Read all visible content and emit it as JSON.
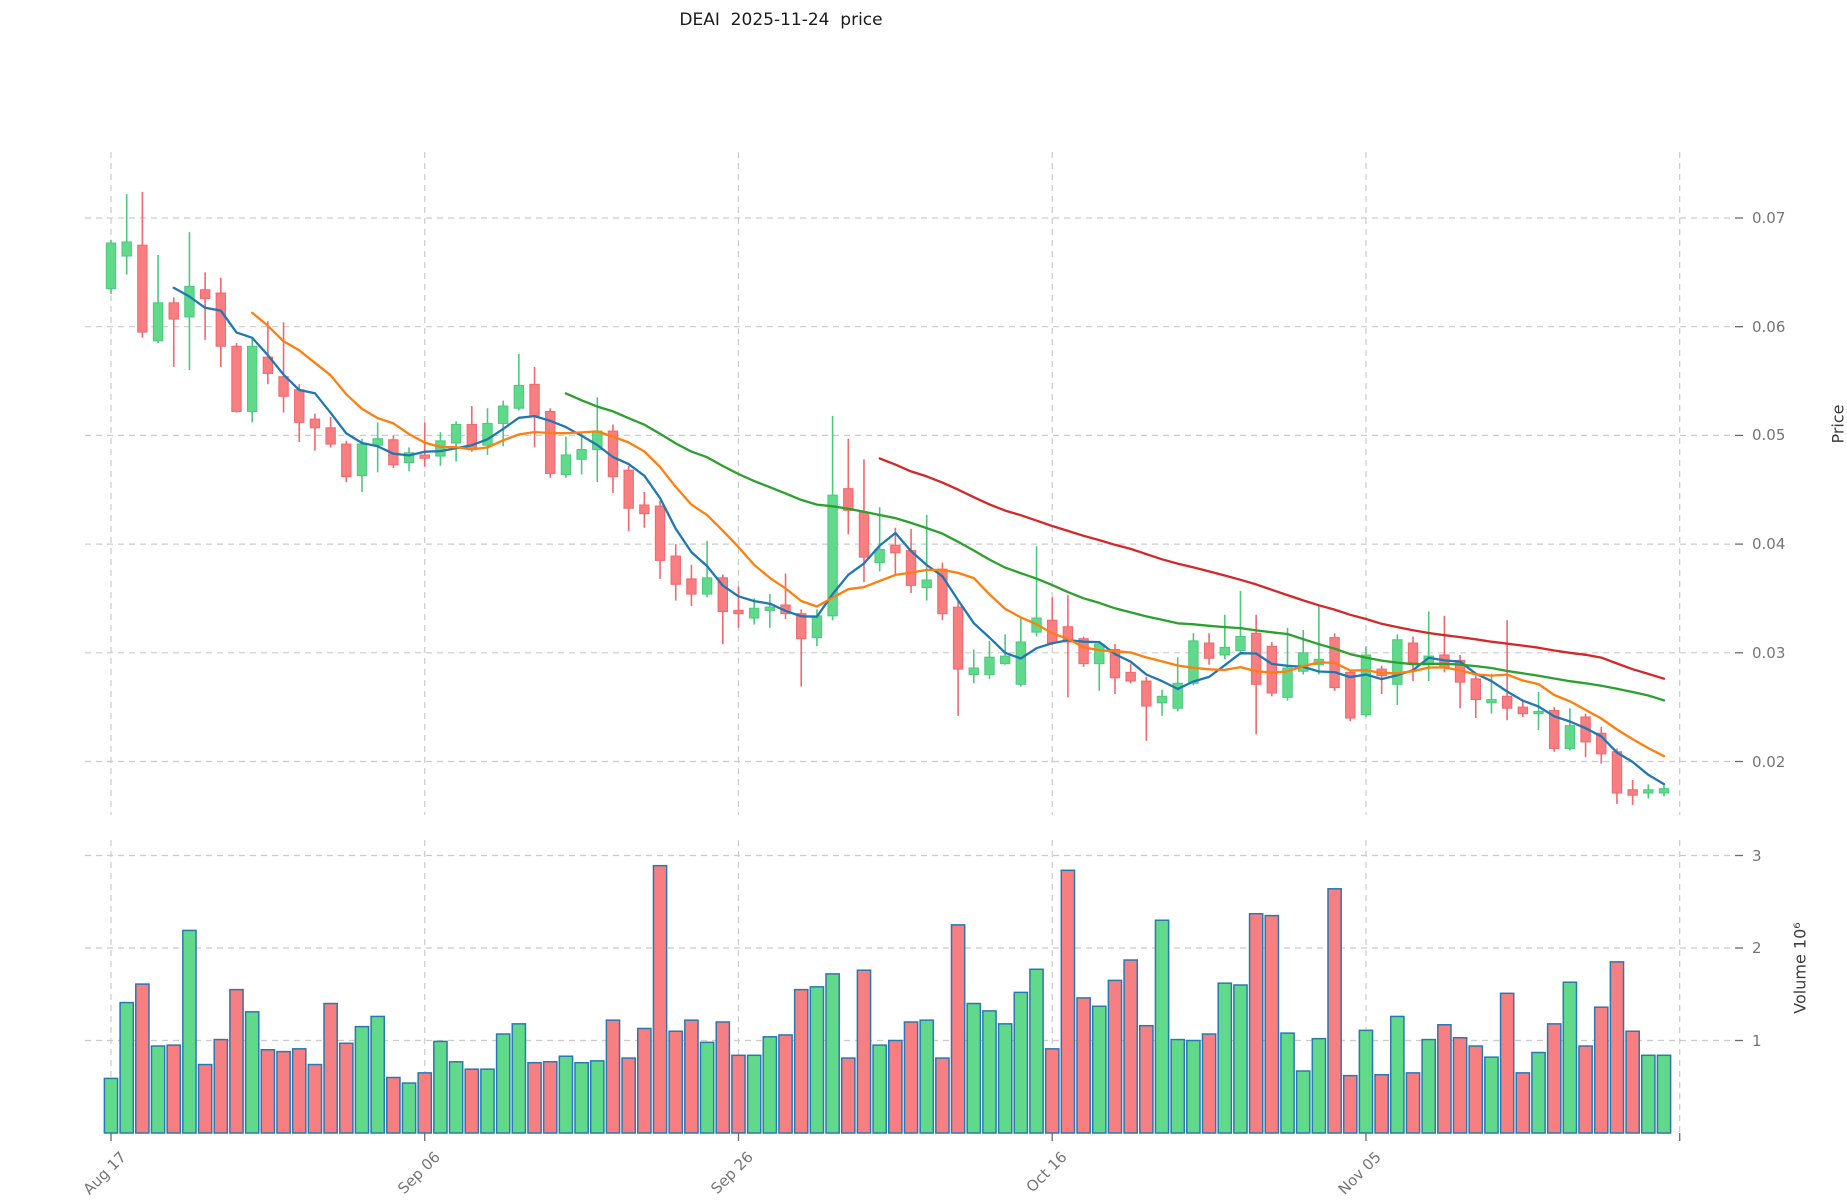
{
  "title": "DEAI  2025-11-24  price",
  "price_axis": {
    "label": "Price",
    "ticks": [
      {
        "value": 0.07,
        "label": "0.07"
      },
      {
        "value": 0.06,
        "label": "0.06"
      },
      {
        "value": 0.05,
        "label": "0.05"
      },
      {
        "value": 0.04,
        "label": "0.04"
      },
      {
        "value": 0.03,
        "label": "0.03"
      },
      {
        "value": 0.02,
        "label": "0.02"
      }
    ]
  },
  "volume_axis": {
    "label": "Volume 10⁶",
    "ticks": [
      {
        "value": 3,
        "label": "3"
      },
      {
        "value": 2,
        "label": "2"
      },
      {
        "value": 1,
        "label": "1"
      }
    ]
  },
  "x_axis": {
    "ticks": [
      {
        "index": 0,
        "label": "Aug 17"
      },
      {
        "index": 20,
        "label": "Sep 06"
      },
      {
        "index": 40,
        "label": "Sep 26"
      },
      {
        "index": 60,
        "label": "Oct 16"
      },
      {
        "index": 80,
        "label": "Nov 05"
      },
      {
        "index": 100,
        "label": ""
      }
    ]
  },
  "colors": {
    "up_fill": "#61d98a",
    "up_edge": "#4cc97c",
    "up_wick": "#4cc97c",
    "down_fill": "#f77e81",
    "down_edge": "#f1686d",
    "down_wick": "#f1686d",
    "volume_edge": "#2a78b0",
    "grid": "#cbcbcb",
    "tick_mark": "#6b6b6b",
    "ma_colors": [
      "#1f77b4",
      "#ff7f0e",
      "#2ca02c",
      "#d62728"
    ]
  },
  "chart_data": {
    "type": "candlestick+volume",
    "symbol": "DEAI",
    "as_of_date": "2025-11-24",
    "frequency": "daily",
    "num_candles": 100,
    "price_ylim": [
      0.0151,
      0.0761
    ],
    "volume_ylim_millions": [
      0,
      3.17
    ],
    "grid": true,
    "moving_average_windows": [
      5,
      10,
      30,
      50
    ],
    "ohlc": [
      [
        0.0635,
        0.068,
        0.063,
        0.0677
      ],
      [
        0.0665,
        0.0722,
        0.0648,
        0.0678
      ],
      [
        0.0675,
        0.0724,
        0.059,
        0.0595
      ],
      [
        0.0587,
        0.0666,
        0.0585,
        0.0622
      ],
      [
        0.0622,
        0.0627,
        0.0563,
        0.0607
      ],
      [
        0.0609,
        0.0687,
        0.056,
        0.0637
      ],
      [
        0.0634,
        0.065,
        0.0588,
        0.0626
      ],
      [
        0.0631,
        0.0645,
        0.0563,
        0.0582
      ],
      [
        0.0582,
        0.0585,
        0.0521,
        0.0522
      ],
      [
        0.0522,
        0.059,
        0.0512,
        0.0582
      ],
      [
        0.0572,
        0.0605,
        0.0547,
        0.0557
      ],
      [
        0.0554,
        0.0604,
        0.0521,
        0.0536
      ],
      [
        0.0542,
        0.0547,
        0.0494,
        0.0512
      ],
      [
        0.0515,
        0.052,
        0.0486,
        0.0507
      ],
      [
        0.0507,
        0.0517,
        0.0489,
        0.0492
      ],
      [
        0.0492,
        0.0495,
        0.0457,
        0.0462
      ],
      [
        0.0463,
        0.0497,
        0.0448,
        0.0492
      ],
      [
        0.0491,
        0.0512,
        0.0466,
        0.0497
      ],
      [
        0.0496,
        0.05,
        0.047,
        0.0473
      ],
      [
        0.0475,
        0.0489,
        0.0467,
        0.0484
      ],
      [
        0.0482,
        0.0512,
        0.0471,
        0.0479
      ],
      [
        0.0481,
        0.0503,
        0.0472,
        0.0495
      ],
      [
        0.0493,
        0.0513,
        0.0476,
        0.051
      ],
      [
        0.051,
        0.0527,
        0.0485,
        0.0487
      ],
      [
        0.0491,
        0.0525,
        0.0482,
        0.0511
      ],
      [
        0.0511,
        0.0532,
        0.049,
        0.0527
      ],
      [
        0.0525,
        0.0575,
        0.0523,
        0.0546
      ],
      [
        0.0547,
        0.0563,
        0.0489,
        0.0518
      ],
      [
        0.0522,
        0.0525,
        0.0461,
        0.0465
      ],
      [
        0.0464,
        0.0499,
        0.0461,
        0.0482
      ],
      [
        0.0478,
        0.0502,
        0.0464,
        0.0487
      ],
      [
        0.0487,
        0.0535,
        0.0457,
        0.0504
      ],
      [
        0.0504,
        0.051,
        0.0447,
        0.0462
      ],
      [
        0.0468,
        0.0472,
        0.0412,
        0.0433
      ],
      [
        0.0436,
        0.0448,
        0.0415,
        0.0428
      ],
      [
        0.0435,
        0.044,
        0.0368,
        0.0385
      ],
      [
        0.0389,
        0.04,
        0.0348,
        0.0363
      ],
      [
        0.0368,
        0.0381,
        0.0343,
        0.0354
      ],
      [
        0.0354,
        0.0403,
        0.0351,
        0.0369
      ],
      [
        0.0369,
        0.0372,
        0.0308,
        0.0338
      ],
      [
        0.0339,
        0.0361,
        0.0323,
        0.0336
      ],
      [
        0.0332,
        0.035,
        0.0326,
        0.0341
      ],
      [
        0.0339,
        0.0354,
        0.0323,
        0.0342
      ],
      [
        0.0344,
        0.0373,
        0.0331,
        0.0336
      ],
      [
        0.0336,
        0.034,
        0.0269,
        0.0313
      ],
      [
        0.0314,
        0.034,
        0.0306,
        0.0334
      ],
      [
        0.0334,
        0.0518,
        0.033,
        0.0445
      ],
      [
        0.0451,
        0.0497,
        0.0409,
        0.0431
      ],
      [
        0.0429,
        0.0478,
        0.0365,
        0.0388
      ],
      [
        0.0383,
        0.0434,
        0.0375,
        0.0395
      ],
      [
        0.0399,
        0.0415,
        0.0372,
        0.0392
      ],
      [
        0.0394,
        0.0414,
        0.0355,
        0.0362
      ],
      [
        0.036,
        0.0427,
        0.0348,
        0.0367
      ],
      [
        0.0377,
        0.0383,
        0.033,
        0.0336
      ],
      [
        0.0342,
        0.0348,
        0.0242,
        0.0285
      ],
      [
        0.028,
        0.0303,
        0.0272,
        0.0286
      ],
      [
        0.028,
        0.0311,
        0.0276,
        0.0296
      ],
      [
        0.029,
        0.0317,
        0.0289,
        0.0297
      ],
      [
        0.0271,
        0.0333,
        0.0269,
        0.031
      ],
      [
        0.0319,
        0.0398,
        0.0315,
        0.0332
      ],
      [
        0.033,
        0.0351,
        0.0307,
        0.0309
      ],
      [
        0.0324,
        0.0353,
        0.0259,
        0.031
      ],
      [
        0.0313,
        0.0315,
        0.0287,
        0.029
      ],
      [
        0.029,
        0.0311,
        0.0265,
        0.0308
      ],
      [
        0.0303,
        0.0308,
        0.0262,
        0.0277
      ],
      [
        0.0282,
        0.029,
        0.0272,
        0.0274
      ],
      [
        0.0274,
        0.0278,
        0.0219,
        0.0251
      ],
      [
        0.0254,
        0.0266,
        0.0242,
        0.026
      ],
      [
        0.0249,
        0.0296,
        0.0246,
        0.0272
      ],
      [
        0.0272,
        0.0318,
        0.027,
        0.0311
      ],
      [
        0.0309,
        0.0318,
        0.0289,
        0.0295
      ],
      [
        0.0298,
        0.0335,
        0.0294,
        0.0305
      ],
      [
        0.0302,
        0.0357,
        0.0298,
        0.0315
      ],
      [
        0.0318,
        0.0335,
        0.0225,
        0.0271
      ],
      [
        0.0306,
        0.031,
        0.026,
        0.0263
      ],
      [
        0.0259,
        0.0323,
        0.0256,
        0.0286
      ],
      [
        0.0283,
        0.0321,
        0.028,
        0.03
      ],
      [
        0.0289,
        0.0343,
        0.028,
        0.0294
      ],
      [
        0.0314,
        0.0318,
        0.0265,
        0.0268
      ],
      [
        0.0282,
        0.0284,
        0.0237,
        0.024
      ],
      [
        0.0243,
        0.0306,
        0.0241,
        0.0298
      ],
      [
        0.0285,
        0.0288,
        0.0262,
        0.0279
      ],
      [
        0.0271,
        0.0317,
        0.0252,
        0.0312
      ],
      [
        0.0309,
        0.0315,
        0.0274,
        0.0291
      ],
      [
        0.0289,
        0.0338,
        0.0274,
        0.0297
      ],
      [
        0.0298,
        0.0334,
        0.0282,
        0.0286
      ],
      [
        0.0293,
        0.0298,
        0.0249,
        0.0273
      ],
      [
        0.0276,
        0.0279,
        0.024,
        0.0257
      ],
      [
        0.0254,
        0.0281,
        0.0244,
        0.0257
      ],
      [
        0.026,
        0.033,
        0.0238,
        0.0249
      ],
      [
        0.025,
        0.0256,
        0.0241,
        0.0244
      ],
      [
        0.0244,
        0.0264,
        0.0229,
        0.0246
      ],
      [
        0.0247,
        0.025,
        0.0209,
        0.0212
      ],
      [
        0.0212,
        0.0249,
        0.021,
        0.0233
      ],
      [
        0.0241,
        0.0244,
        0.0204,
        0.0218
      ],
      [
        0.0226,
        0.0232,
        0.0198,
        0.0207
      ],
      [
        0.0209,
        0.0212,
        0.0161,
        0.0171
      ],
      [
        0.0174,
        0.0183,
        0.016,
        0.0169
      ],
      [
        0.0171,
        0.0179,
        0.0166,
        0.0174
      ],
      [
        0.0171,
        0.018,
        0.0168,
        0.0175
      ]
    ],
    "volume_millions": [
      0.59,
      1.41,
      1.61,
      0.94,
      0.95,
      2.19,
      0.74,
      1.01,
      1.55,
      1.31,
      0.9,
      0.88,
      0.91,
      0.74,
      1.4,
      0.97,
      1.15,
      1.26,
      0.6,
      0.54,
      0.65,
      0.99,
      0.77,
      0.69,
      0.69,
      1.07,
      1.18,
      0.76,
      0.77,
      0.83,
      0.76,
      0.78,
      1.22,
      0.81,
      1.13,
      2.89,
      1.1,
      1.22,
      0.98,
      1.2,
      0.84,
      0.84,
      1.04,
      1.06,
      1.55,
      1.58,
      1.72,
      0.81,
      1.76,
      0.95,
      1.0,
      1.2,
      1.22,
      0.81,
      2.25,
      1.4,
      1.32,
      1.18,
      1.52,
      1.77,
      0.91,
      2.84,
      1.46,
      1.37,
      1.65,
      1.87,
      1.16,
      2.3,
      1.01,
      1.0,
      1.07,
      1.62,
      1.6,
      2.37,
      2.35,
      1.08,
      0.67,
      1.02,
      2.64,
      0.62,
      1.11,
      0.63,
      1.26,
      0.65,
      1.01,
      1.17,
      1.03,
      0.94,
      0.82,
      1.51,
      0.65,
      0.87,
      1.18,
      1.63,
      0.94,
      1.36,
      1.85,
      1.1,
      0.84,
      0.84
    ]
  }
}
